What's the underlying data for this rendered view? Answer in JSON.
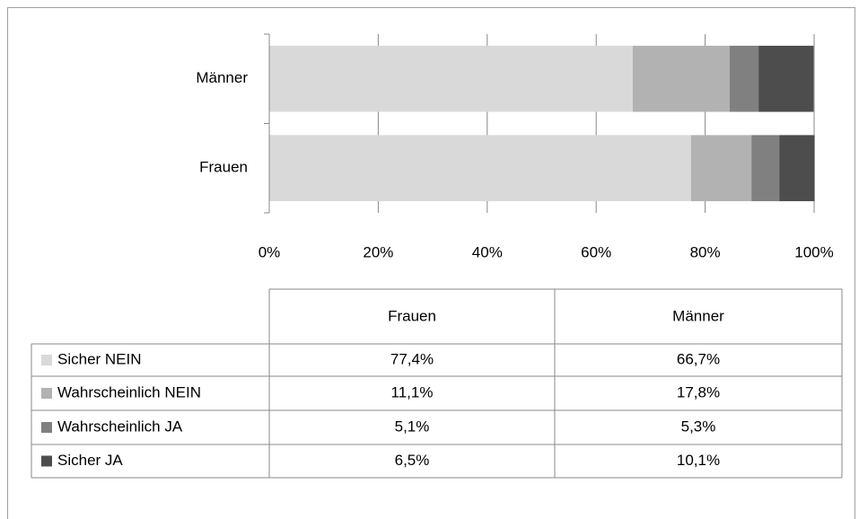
{
  "chart_data": {
    "type": "stacked-bar-horizontal",
    "categories": [
      "Frauen",
      "Männer"
    ],
    "series": [
      {
        "name": "Sicher NEIN",
        "color": "#d9d9d9",
        "values": [
          77.4,
          66.7
        ],
        "value_labels": [
          "77,4%",
          "66,7%"
        ]
      },
      {
        "name": "Wahrscheinlich NEIN",
        "color": "#b2b2b2",
        "values": [
          11.1,
          17.8
        ],
        "value_labels": [
          "11,1%",
          "17,8%"
        ]
      },
      {
        "name": "Wahrscheinlich JA",
        "color": "#808080",
        "values": [
          5.1,
          5.3
        ],
        "value_labels": [
          "5,1%",
          "5,3%"
        ]
      },
      {
        "name": "Sicher JA",
        "color": "#4d4d4d",
        "values": [
          6.5,
          10.1
        ],
        "value_labels": [
          "6,5%",
          "10,1%"
        ]
      }
    ],
    "xlim": [
      0,
      100
    ],
    "xticks": [
      {
        "value": 0,
        "label": "0%"
      },
      {
        "value": 20,
        "label": "20%"
      },
      {
        "value": 40,
        "label": "40%"
      },
      {
        "value": 60,
        "label": "60%"
      },
      {
        "value": 80,
        "label": "80%"
      },
      {
        "value": 100,
        "label": "100%"
      }
    ],
    "grid": true
  }
}
